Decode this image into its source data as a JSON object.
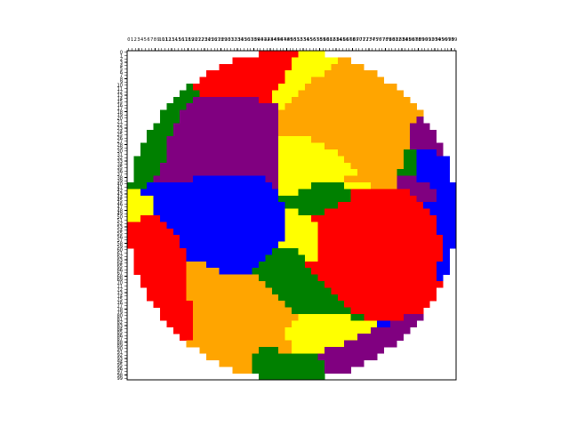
{
  "chart_data": {
    "type": "heatmap",
    "colors": {
      "R": "#ff0000",
      "O": "#ffa500",
      "Y": "#ffff00",
      "G": "#008000",
      "B": "#0000ff",
      "P": "#800080"
    },
    "xlim": [
      -0.5,
      99.5
    ],
    "ylim": [
      99.5,
      -0.5
    ],
    "xticks": [
      0,
      1,
      2,
      3,
      4,
      5,
      6,
      7,
      8,
      9,
      10,
      11,
      12,
      13,
      14,
      15,
      16,
      17,
      18,
      19,
      20,
      21,
      22,
      23,
      24,
      25,
      26,
      27,
      28,
      29,
      30,
      31,
      32,
      33,
      34,
      35,
      36,
      37,
      38,
      39,
      40,
      41,
      42,
      43,
      44,
      45,
      46,
      47,
      48,
      49,
      50,
      51,
      52,
      53,
      54,
      55,
      56,
      57,
      58,
      59,
      60,
      61,
      62,
      63,
      64,
      65,
      66,
      67,
      68,
      69,
      70,
      71,
      72,
      73,
      74,
      75,
      76,
      77,
      78,
      79,
      80,
      81,
      82,
      83,
      84,
      85,
      86,
      87,
      88,
      89,
      90,
      91,
      92,
      93,
      94,
      95,
      96,
      97,
      98,
      99
    ],
    "yticks": [
      0,
      1,
      2,
      3,
      4,
      5,
      6,
      7,
      8,
      9,
      10,
      11,
      12,
      13,
      14,
      15,
      16,
      17,
      18,
      19,
      20,
      21,
      22,
      23,
      24,
      25,
      26,
      27,
      28,
      29,
      30,
      31,
      32,
      33,
      34,
      35,
      36,
      37,
      38,
      39,
      40,
      41,
      42,
      43,
      44,
      45,
      46,
      47,
      48,
      49,
      50,
      51,
      52,
      53,
      54,
      55,
      56,
      57,
      58,
      59,
      60,
      61,
      62,
      63,
      64,
      65,
      66,
      67,
      68,
      69,
      70,
      71,
      72,
      73,
      74,
      75,
      76,
      77,
      78,
      79,
      80,
      81,
      82,
      83,
      84,
      85,
      86,
      87,
      88,
      89,
      90,
      91,
      92,
      93,
      94,
      95,
      96,
      97,
      98,
      99
    ],
    "cells": [
      "....................RRRRRRYYYY....................",
      "................RRRRRRRRRYYYYYYYOO................",
      "..............RRRRRRRRRRRYYYYYYOOOOO..............",
      "............RRRRRRRRRRRRYYYYYYOOOOOOOO............",
      "...........RRRRRRRRRRRRRYYYYOOOOOOOOOOO...........",
      ".........GRRRRRRRRRRRRRYYYYOOOOOOOOOOOOOO.........",
      "........GGGRRRRRRRRRRRYYYYOOOOOOOOOOOOOOOO........",
      ".......GGGPPPPPPPPPPRRYYYOOOOOOOOOOOOOOOOOO.......",
      "......GGGPPPPPPPPPPPPPPYOOOOOOOOOOOOOOOOOOOO......",
      ".....GGGPPPPPPPPPPPPPPPOOOOOOOOOOOOOOOOOOOOOO.....",
      ".....GGGPPPPPPPPPPPPPPPOOOOOOOOOOOOOOOOOOOOOP.....",
      "....GGGPPPPPPPPPPPPPPPPOOOOOOOOOOOOOOOOOOOOPPP....",
      "...GGGGPPPPPPPPPPPPPPPPOOOOOOOOOOOOOOOOOOOOPPPP...",
      "...GGGPPPPPPPPPPPPPPPPPYYYYYOOOOOOOOOOOOOOOPPPP...",
      "..GGGGPPPPPPPPPPPPPPPPPYYYYYYYOOOOOOOOOOOOOPPPPP..",
      "..GGGGPPPPPPPPPPPPPPPPPYYYYYYYYYOOOOOOOOOOGGBBBP..",
      ".GGGGGPPPPPPPPPPPPPPPPPYYYYYYYYYYOOOOOOOOOGGBBBBB.",
      ".GGGGPPPPPPPPPPPPPPPPPPYYYYYYYYYYYOOOOOOOOGGBBBBB.",
      ".GGGGPPPPPPPPPPPPPPPPPPYYYYYYYYYYYYOOOOOOGGGBBBBB.",
      ".GGGPPPPPPBBBBBBBBBBBPPYYYYYYYYYYOOOOOOOOPPPBBBBB.",
      "GGGBBBBBBBBBBBBBBBBBBBPYYYYYGGGGGYYYYOOOOPPPPPBBBB",
      "YYBBBBBBBBBBBBBBBBBBBBBYYYGGGGGGGGRRRRRRRRRPPPPBBB",
      "YYYYBBBBBBBBBBBBBBBBBBBGGGGGGGGGGGRRRRRRRRRRPPPBBB",
      "YYYYBBBBBBBBBBBBBBBBBBBBGGGGGGGGRRRRRRRRRRRRRBBBBB",
      "YYYYBBBBBBBBBBBBBBBBBBBBYYGGGGRRRRRRRRRRRRRRRRBBBB",
      "YYRRRBBBBBBBBBBBBBBBBBBBYYYYRRRRRRRRRRRRRRRRRRRBBB",
      "RRRRRRBBBBBBBBBBBBBBBBBBYYYYYRRRRRRRRRRRRRRRRRRBBB",
      "RRRRRRRBBBBBBBBBBBBBBBBBYYYYYRRRRRRRRRRRRRRRRRRBBB",
      "RRRRRRRRBBBBBBBBBBBBBBBBYYYYYRRRRRRRRRRRRRRRRRRRBB",
      "RRRRRRRRBBBBBBBBBBBBBBBYYYYYYRRRRRRRRRRRRRRRRRRRBB",
      ".RRRRRRRRBBBBBBBBBBBBBGGGGYYYRRRRRRRRRRRRRRRRRRRB.",
      ".RRRRRRRRBBBBBBBBBBBBGGGGGGYYRRRRRRRRRRRRRRRRRRRB.",
      ".RRRRRRRROOOBBBBBBBBGGGGGGGRRRRRRRRRRRRRRRRRRRRBB.",
      ".RRRRRRRROOOOOBBBBBGGGGGGGGGRRRRRRRRRRRRRRRRRRRBB.",
      "..RRRRRRROOOOOOOOOOOGGGGGGGGGRRRRRRRRRRRRRRRRRRB..",
      "..RRRRRRROOOOOOOOOOOOGGGGGGGGGRRRRRRRRRRRRRRRRRR..",
      "...RRRRRROOOOOOOOOOOOOGGGGGGGGGRRRRRRRRRRRRRRRR...",
      "...RRRRRROOOOOOOOOOOOOOGGGGGGGGGRRRRRRRRRRRRRRR...",
      "....RRRRRROOOOOOOOOOOOOOGGGGGGGGGRRRRRRRRRRRRR....",
      ".....RRRRROOOOOOOOOOOOOOOGGGGGGGGGRRRRRRRRRRR.....",
      ".....RRRRROOOOOOOOOOOOOOOOYYYYYYYYGGRRRRRRPPP.....",
      "......RRRROOOOOOOOOOOOOOOYYYYYYYYYYYYYBBPPPP......",
      ".......RRROOOOOOOOOOOOOOYYYYYYYYYYYYYPPPPPP.......",
      "........RROOOOOOOOOOOOOOYYYYYYYYYYYPPPPPPP........",
      ".........OOOOOOOOOOOOOOOOYYYYYYYYPPPPPPPP.........",
      "...........OOOOOOOOOGGGOOYYYYYPPPPPPPPP...........",
      "............OOOOOOOGGGGGGGGGGPPPPPPPPP............",
      "..............OOOOOGGGGGGGGGGGPPPPPP..............",
      "................OOOGGGGGGGGGGGPPPP................",
      "....................GGGGGGGGGG...................."
    ]
  }
}
